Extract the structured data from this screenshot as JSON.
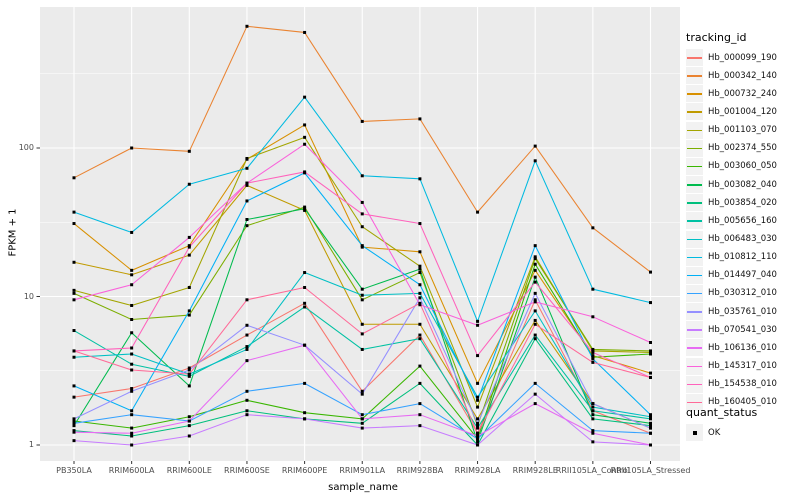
{
  "page": {
    "background": "#FFFFFF"
  },
  "chart_data": {
    "type": "line",
    "title": "",
    "xlabel": "sample_name",
    "ylabel": "FPKM + 1",
    "y_scale": "log10",
    "grid": true,
    "legend_position": "right",
    "panel_bg": "#EBEBEB",
    "grid_color": "#FFFFFF",
    "point_color": "#000000",
    "tick_color": "#333333",
    "tick_label_color": "#4D4D4D",
    "legend_key_bg": "#F2F2F2",
    "y_ticks": [
      1,
      10,
      100
    ],
    "y_tick_labels": [
      "1",
      "10",
      "100"
    ],
    "y_minor_ticks": [
      3.162,
      31.62,
      316.2
    ],
    "ylim": [
      0.83,
      860
    ],
    "categories": [
      "PB350LA",
      "RRIM600LA",
      "RRIM600LE",
      "RRIM600SE",
      "RRIM600PE",
      "RRIM901LA",
      "RRIM928BA",
      "RRIM928LA",
      "RRIM928LE",
      "RRII105LA_Control",
      "RRII105LA_Stressed"
    ],
    "series": [
      {
        "name": "Hb_000099_190",
        "color": "#F8766D",
        "values": [
          2.1,
          2.4,
          3.3,
          5.5,
          9,
          2.3,
          5.5,
          1.2,
          9.5,
          1.7,
          1.2
        ]
      },
      {
        "name": "Hb_000342_140",
        "color": "#EA8331",
        "values": [
          63,
          100,
          95,
          660,
          600,
          151,
          157,
          37,
          103,
          29,
          14.6
        ]
      },
      {
        "name": "Hb_000732_240",
        "color": "#D89000",
        "values": [
          31,
          15,
          22,
          84,
          143,
          21.5,
          20,
          2.6,
          15,
          4,
          3.05
        ]
      },
      {
        "name": "Hb_001004_120",
        "color": "#C09B00",
        "values": [
          17,
          14,
          19,
          56,
          38,
          6.5,
          6.5,
          1.5,
          6.9,
          1.9,
          1.3
        ]
      },
      {
        "name": "Hb_001103_070",
        "color": "#A3A500",
        "values": [
          11,
          8.7,
          11.5,
          85,
          118,
          29.5,
          16,
          1.8,
          18.5,
          4.3,
          4.2
        ]
      },
      {
        "name": "Hb_002374_550",
        "color": "#7CAE00",
        "values": [
          10.5,
          7,
          7.5,
          30,
          40,
          9.5,
          14.5,
          1.35,
          18,
          4.4,
          4.3
        ]
      },
      {
        "name": "Hb_003060_050",
        "color": "#39B600",
        "values": [
          1.45,
          1.3,
          1.55,
          2,
          1.65,
          1.5,
          3.4,
          1.1,
          16.5,
          3.9,
          4.1
        ]
      },
      {
        "name": "Hb_003082_040",
        "color": "#00BB4E",
        "values": [
          1.35,
          5.7,
          2.5,
          33,
          39,
          11.2,
          15.3,
          1.05,
          13.5,
          1.6,
          1.4
        ]
      },
      {
        "name": "Hb_003854_020",
        "color": "#00BF7D",
        "values": [
          1.25,
          1.15,
          1.35,
          1.7,
          1.5,
          1.4,
          2.6,
          1,
          5.2,
          1.5,
          1.35
        ]
      },
      {
        "name": "Hb_005656_160",
        "color": "#00C1A3",
        "values": [
          5.9,
          3.5,
          2.9,
          4.6,
          8.5,
          4.4,
          5.2,
          1.3,
          5.5,
          1.7,
          1.5
        ]
      },
      {
        "name": "Hb_006483_030",
        "color": "#00BFC4",
        "values": [
          3.9,
          4.1,
          3,
          4.4,
          14.5,
          10.2,
          10.5,
          2.1,
          8,
          1.8,
          1.55
        ]
      },
      {
        "name": "Hb_010812_110",
        "color": "#00BAE0",
        "values": [
          37,
          27,
          57,
          73,
          220,
          65,
          62,
          6.8,
          82,
          11.2,
          9.1
        ]
      },
      {
        "name": "Hb_014497_040",
        "color": "#00B0F6",
        "values": [
          2.5,
          1.7,
          8,
          44,
          68,
          22,
          12,
          2,
          22,
          3.8,
          1.6
        ]
      },
      {
        "name": "Hb_030312_010",
        "color": "#35A2FF",
        "values": [
          1.4,
          1.6,
          1.45,
          2.3,
          2.6,
          1.6,
          1.9,
          1.1,
          2.6,
          1.25,
          1.2
        ]
      },
      {
        "name": "Hb_035761_010",
        "color": "#9590FF",
        "values": [
          1.5,
          2.3,
          3.2,
          6.4,
          4.7,
          2.2,
          9.8,
          1.4,
          10.5,
          1.9,
          1.3
        ]
      },
      {
        "name": "Hb_070541_030",
        "color": "#C77CFF",
        "values": [
          1.07,
          1,
          1.15,
          1.6,
          1.5,
          1.3,
          1.35,
          1,
          2.2,
          1.05,
          1
        ]
      },
      {
        "name": "Hb_106136_010",
        "color": "#E76BF3",
        "values": [
          1.22,
          1.2,
          1.45,
          3.7,
          4.7,
          1.5,
          1.6,
          1.15,
          1.9,
          1.2,
          1
        ]
      },
      {
        "name": "Hb_145317_010",
        "color": "#FA62DB",
        "values": [
          9.5,
          12,
          25,
          58,
          106,
          43,
          8.8,
          6.4,
          9.2,
          7.3,
          4.9
        ]
      },
      {
        "name": "Hb_154538_010",
        "color": "#FF62BC",
        "values": [
          4.3,
          4.5,
          21.5,
          58,
          69,
          36,
          31,
          4,
          12.5,
          4.2,
          2.85
        ]
      },
      {
        "name": "Hb_160405_010",
        "color": "#FF6A98",
        "values": [
          4.3,
          3.2,
          3,
          9.5,
          11.5,
          5.6,
          9,
          1.2,
          6.5,
          3.6,
          2.85
        ]
      }
    ],
    "legend": {
      "color_legend_title": "tracking_id",
      "shape_legend_title": "quant_status",
      "shape_items": [
        "OK"
      ]
    }
  }
}
